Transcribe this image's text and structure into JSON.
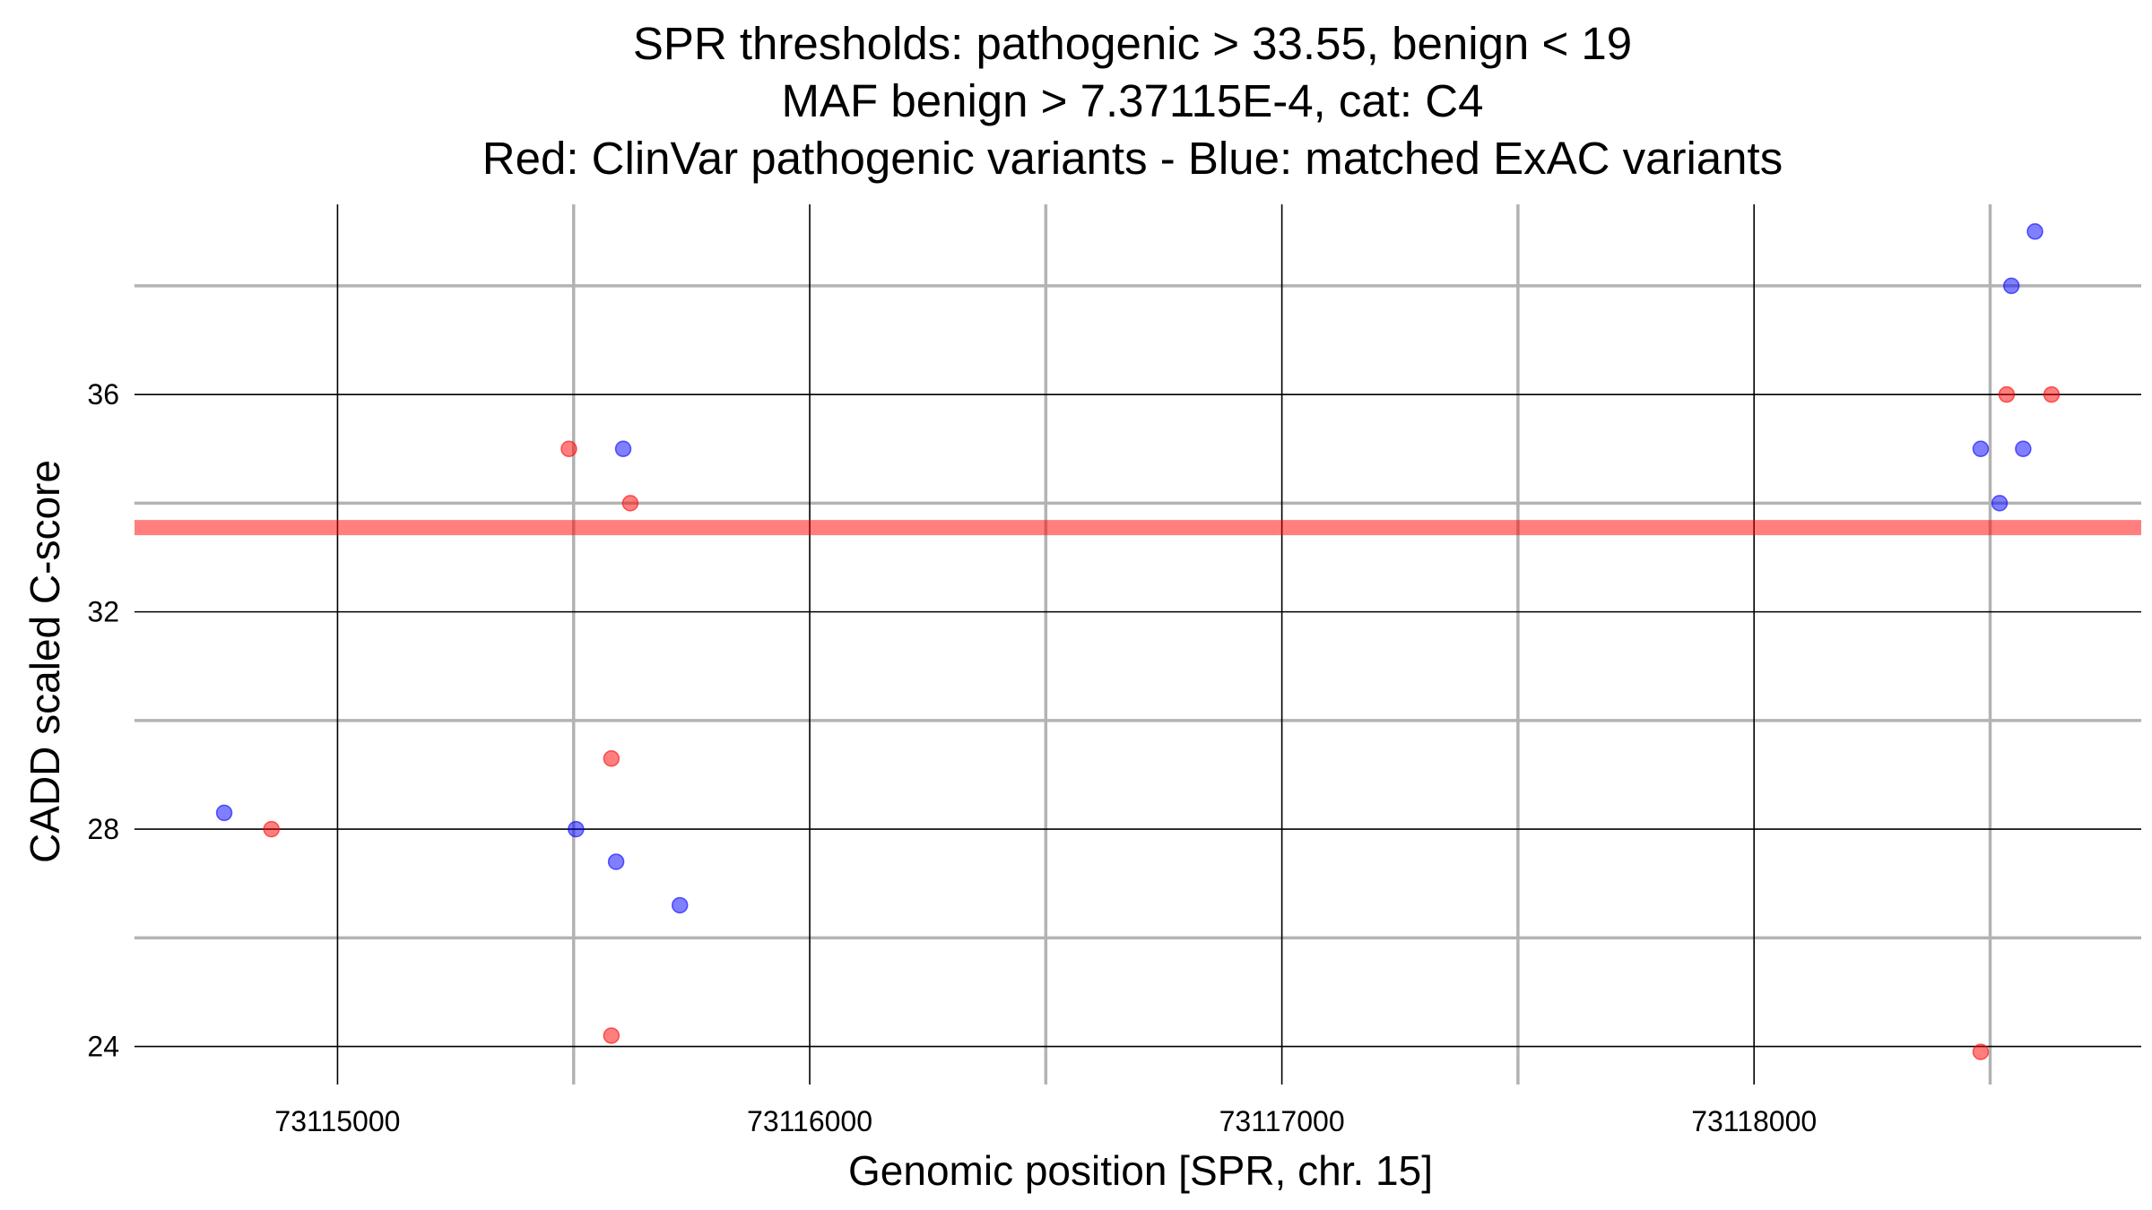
{
  "chart_data": {
    "type": "scatter",
    "title": [
      "SPR thresholds: pathogenic > 33.55, benign < 19",
      "MAF benign > 7.37115E-4, cat: C4",
      "Red: ClinVar pathogenic variants - Blue: matched ExAC variants"
    ],
    "xlabel": "Genomic position [SPR, chr. 15]",
    "ylabel": "CADD scaled C-score",
    "xlim": [
      73114570,
      73118820
    ],
    "ylim": [
      23.3,
      39.5
    ],
    "x_major_ticks": [
      73115000,
      73116000,
      73117000,
      73118000
    ],
    "x_tick_labels": [
      "73115000",
      "73116000",
      "73117000",
      "73118000"
    ],
    "x_minor_ticks": [
      73115500,
      73116500,
      73117500,
      73118500
    ],
    "y_major_ticks": [
      24,
      28,
      32,
      36
    ],
    "y_tick_labels": [
      "24",
      "28",
      "32",
      "36"
    ],
    "y_minor_ticks": [
      26,
      30,
      34,
      38
    ],
    "grid": true,
    "threshold_line": {
      "y": 33.55,
      "color": "#ff0000"
    },
    "series": [
      {
        "color": "#ff0000",
        "points": [
          {
            "x": 73114860,
            "y": 28.0
          },
          {
            "x": 73115490,
            "y": 35.0
          },
          {
            "x": 73115580,
            "y": 29.3
          },
          {
            "x": 73115580,
            "y": 24.2
          },
          {
            "x": 73115620,
            "y": 34.0
          },
          {
            "x": 73118480,
            "y": 23.9
          },
          {
            "x": 73118535,
            "y": 36.0
          },
          {
            "x": 73118630,
            "y": 36.0
          }
        ]
      },
      {
        "color": "#0000ff",
        "points": [
          {
            "x": 73114760,
            "y": 28.3
          },
          {
            "x": 73115505,
            "y": 28.0
          },
          {
            "x": 73115590,
            "y": 27.4
          },
          {
            "x": 73115605,
            "y": 35.0
          },
          {
            "x": 73115725,
            "y": 26.6
          },
          {
            "x": 73118480,
            "y": 35.0
          },
          {
            "x": 73118520,
            "y": 34.0
          },
          {
            "x": 73118545,
            "y": 38.0
          },
          {
            "x": 73118570,
            "y": 35.0
          },
          {
            "x": 73118595,
            "y": 39.0
          }
        ]
      }
    ]
  }
}
